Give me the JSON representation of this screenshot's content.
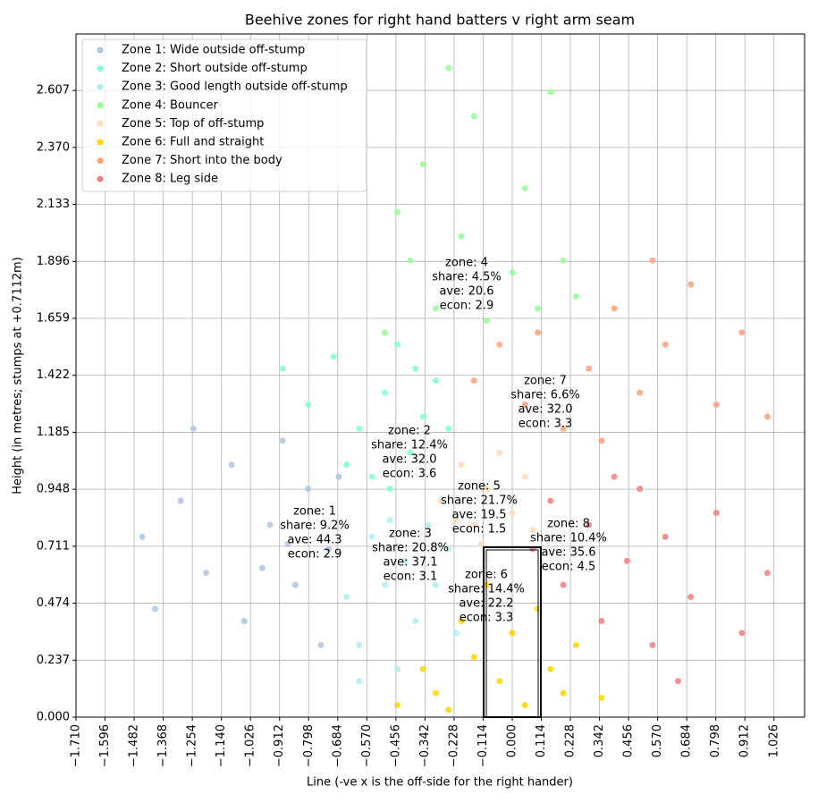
{
  "chart_data": {
    "type": "scatter",
    "title": "Beehive zones for right hand batters v right arm seam",
    "x_label": "Line (-ve x is the off-side for the right hander)",
    "y_label": "Height (in metres; stumps at +0.7112m)",
    "xlim": [
      -1.71,
      1.146
    ],
    "ylim": [
      0,
      2.842
    ],
    "grid": true,
    "legend": "upper left",
    "xticks": [
      {
        "value": -1.71,
        "label": "−1.710"
      },
      {
        "value": -1.596,
        "label": "−1.596"
      },
      {
        "value": -1.482,
        "label": "−1.482"
      },
      {
        "value": -1.368,
        "label": "−1.368"
      },
      {
        "value": -1.254,
        "label": "−1.254"
      },
      {
        "value": -1.14,
        "label": "−1.140"
      },
      {
        "value": -1.026,
        "label": "−1.026"
      },
      {
        "value": -0.912,
        "label": "−0.912"
      },
      {
        "value": -0.798,
        "label": "−0.798"
      },
      {
        "value": -0.684,
        "label": "−0.684"
      },
      {
        "value": -0.57,
        "label": "−0.570"
      },
      {
        "value": -0.456,
        "label": "−0.456"
      },
      {
        "value": -0.342,
        "label": "−0.342"
      },
      {
        "value": -0.228,
        "label": "−0.228"
      },
      {
        "value": -0.114,
        "label": "−0.114"
      },
      {
        "value": 0,
        "label": "0.000"
      },
      {
        "value": 0.114,
        "label": "0.114"
      },
      {
        "value": 0.228,
        "label": "0.228"
      },
      {
        "value": 0.342,
        "label": "0.342"
      },
      {
        "value": 0.456,
        "label": "0.456"
      },
      {
        "value": 0.57,
        "label": "0.570"
      },
      {
        "value": 0.684,
        "label": "0.684"
      },
      {
        "value": 0.798,
        "label": "0.798"
      },
      {
        "value": 0.912,
        "label": "0.912"
      },
      {
        "value": 1.026,
        "label": "1.026"
      }
    ],
    "yticks": [
      {
        "value": 0,
        "label": "0.000"
      },
      {
        "value": 0.237,
        "label": "0.237"
      },
      {
        "value": 0.474,
        "label": "0.474"
      },
      {
        "value": 0.711,
        "label": "0.711"
      },
      {
        "value": 0.948,
        "label": "0.948"
      },
      {
        "value": 1.185,
        "label": "1.185"
      },
      {
        "value": 1.422,
        "label": "1.422"
      },
      {
        "value": 1.659,
        "label": "1.659"
      },
      {
        "value": 1.896,
        "label": "1.896"
      },
      {
        "value": 2.133,
        "label": "2.133"
      },
      {
        "value": 2.37,
        "label": "2.370"
      },
      {
        "value": 2.607,
        "label": "2.607"
      }
    ],
    "series": [
      {
        "name": "Zone 1: Wide outside off-stump",
        "color": "#b0c4de",
        "x": [
          -1.45,
          -1.3,
          -1.2,
          -1.1,
          -1.05,
          -0.95,
          -0.9,
          -0.85,
          -0.8,
          -0.75,
          -0.72,
          -0.68,
          -1.25,
          -1.4,
          -0.98,
          -0.88
        ],
        "y": [
          0.75,
          0.9,
          0.6,
          1.05,
          0.4,
          0.8,
          1.15,
          0.55,
          0.95,
          0.3,
          0.7,
          1.0,
          1.2,
          0.45,
          0.62,
          0.72
        ]
      },
      {
        "name": "Zone 2: Short outside off-stump",
        "color": "#7fffd4",
        "x": [
          -0.9,
          -0.8,
          -0.7,
          -0.6,
          -0.55,
          -0.5,
          -0.45,
          -0.4,
          -0.35,
          -0.3,
          -0.25,
          -0.65,
          -0.48,
          -0.38
        ],
        "y": [
          1.45,
          1.3,
          1.5,
          1.2,
          1.0,
          1.35,
          1.55,
          1.1,
          1.25,
          1.4,
          1.2,
          1.05,
          0.95,
          1.45
        ]
      },
      {
        "name": "Zone 3: Good length outside off-stump",
        "color": "#afeeee",
        "x": [
          -0.65,
          -0.6,
          -0.55,
          -0.5,
          -0.45,
          -0.42,
          -0.38,
          -0.33,
          -0.3,
          -0.25,
          -0.22,
          -0.6,
          -0.48
        ],
        "y": [
          0.5,
          0.3,
          0.75,
          0.55,
          0.2,
          0.65,
          0.4,
          0.8,
          0.55,
          0.7,
          0.35,
          0.15,
          0.82
        ]
      },
      {
        "name": "Zone 4: Bouncer",
        "color": "#98fb98",
        "x": [
          -0.5,
          -0.4,
          -0.35,
          -0.3,
          -0.2,
          -0.15,
          -0.1,
          0.0,
          0.05,
          0.1,
          0.2,
          -0.25,
          0.15,
          -0.45,
          0.25
        ],
        "y": [
          1.6,
          1.9,
          2.3,
          1.7,
          2.0,
          2.5,
          1.65,
          1.85,
          2.2,
          1.7,
          1.9,
          2.7,
          2.6,
          2.1,
          1.75
        ]
      },
      {
        "name": "Zone 5: Top of off-stump",
        "color": "#ffdab9",
        "x": [
          -0.28,
          -0.2,
          -0.15,
          -0.1,
          -0.05,
          0.0,
          0.05,
          -0.12,
          -0.22,
          0.08
        ],
        "y": [
          0.9,
          1.05,
          0.8,
          0.95,
          1.1,
          0.85,
          1.0,
          0.72,
          0.82,
          0.78
        ]
      },
      {
        "name": "Zone 6: Full and straight",
        "color": "#ffd700",
        "x": [
          -0.45,
          -0.35,
          -0.3,
          -0.2,
          -0.15,
          -0.1,
          -0.05,
          0.0,
          0.05,
          0.1,
          0.15,
          0.2,
          0.25,
          0.35,
          -0.25
        ],
        "y": [
          0.05,
          0.2,
          0.1,
          0.4,
          0.25,
          0.55,
          0.15,
          0.35,
          0.05,
          0.45,
          0.2,
          0.1,
          0.3,
          0.08,
          0.03
        ]
      },
      {
        "name": "Zone 7: Short into the body",
        "color": "#ffa07a",
        "x": [
          -0.15,
          -0.05,
          0.05,
          0.1,
          0.2,
          0.3,
          0.4,
          0.5,
          0.6,
          0.7,
          0.8,
          0.9,
          1.0,
          0.35,
          0.55
        ],
        "y": [
          1.4,
          1.55,
          1.3,
          1.6,
          1.2,
          1.45,
          1.7,
          1.35,
          1.55,
          1.8,
          1.3,
          1.6,
          1.25,
          1.15,
          1.9
        ]
      },
      {
        "name": "Zone 8: Leg side",
        "color": "#f08080",
        "x": [
          0.08,
          0.15,
          0.2,
          0.3,
          0.35,
          0.45,
          0.5,
          0.55,
          0.6,
          0.7,
          0.8,
          0.9,
          1.0,
          0.4,
          0.65
        ],
        "y": [
          0.7,
          0.9,
          0.55,
          0.8,
          0.4,
          0.65,
          0.95,
          0.3,
          0.75,
          0.5,
          0.85,
          0.35,
          0.6,
          1.0,
          0.15
        ]
      }
    ],
    "annotations": [
      {
        "lines": [
          "zone: 1",
          "share: 9.2%",
          "ave: 44.3",
          "econ: 2.9"
        ]
      },
      {
        "lines": [
          "zone: 2",
          "share: 12.4%",
          "ave: 32.0",
          "econ: 3.6"
        ]
      },
      {
        "lines": [
          "zone: 3",
          "share: 20.8%",
          "ave: 37.1",
          "econ: 3.1"
        ]
      },
      {
        "lines": [
          "zone: 4",
          "share: 4.5%",
          "ave: 20.6",
          "econ: 2.9"
        ]
      },
      {
        "lines": [
          "zone: 5",
          "share: 21.7%",
          "ave: 19.5",
          "econ: 1.5"
        ]
      },
      {
        "lines": [
          "zone: 6",
          "share: 14.4%",
          "ave: 22.2",
          "econ: 3.3"
        ]
      },
      {
        "lines": [
          "zone: 7",
          "share: 6.6%",
          "ave: 32.0",
          "econ: 3.3"
        ]
      },
      {
        "lines": [
          "zone: 8",
          "share: 10.4%",
          "ave: 35.6",
          "econ: 4.5"
        ]
      }
    ]
  }
}
